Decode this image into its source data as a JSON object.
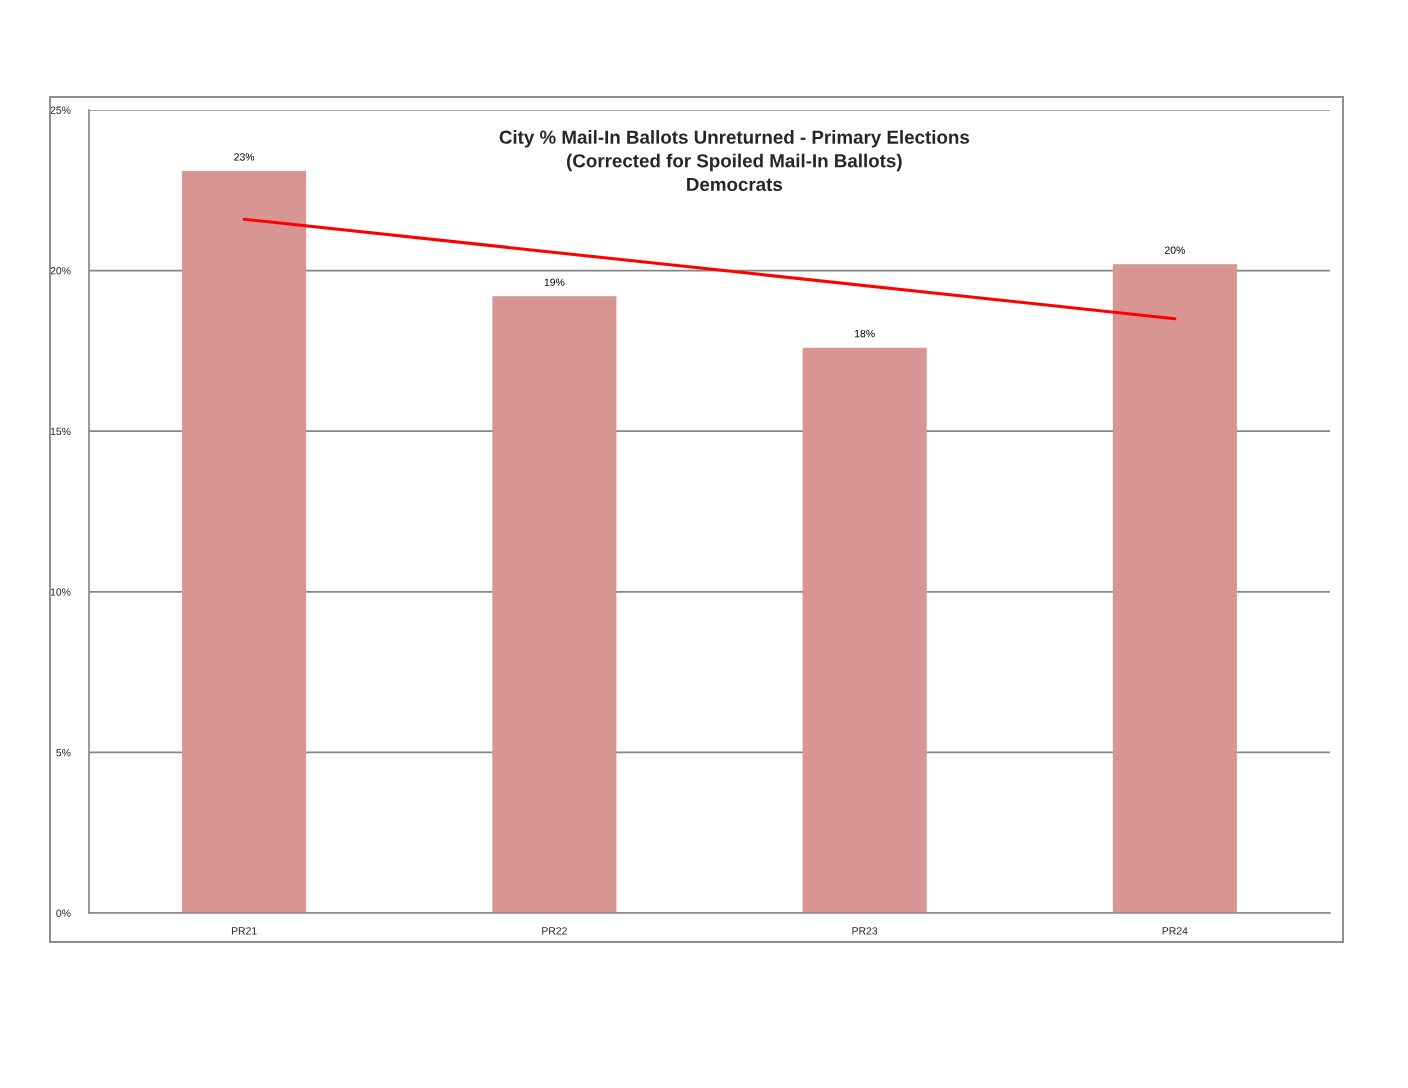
{
  "chart_data": {
    "type": "bar",
    "title": "City % Mail-In Ballots Unreturned - Primary Elections\n(Corrected for Spoiled Mail-In Ballots)\nDemocrats",
    "categories": [
      "PR21",
      "PR22",
      "PR23",
      "PR24"
    ],
    "series": [
      {
        "color": "#d99594",
        "values": [
          23.1,
          19.2,
          17.6,
          20.2
        ],
        "value_labels": [
          "23%",
          "19%",
          "18%",
          "20%"
        ]
      },
      {
        "type": "line",
        "x": [
          "PR21",
          "PR24"
        ],
        "color": "#ff0000",
        "values": [
          21.6,
          18.5
        ]
      }
    ],
    "ylim": [
      0,
      25
    ],
    "yticks": [
      {
        "value": 0,
        "label": "0%"
      },
      {
        "value": 5,
        "label": "5%"
      },
      {
        "value": 10,
        "label": "10%"
      },
      {
        "value": 15,
        "label": "15%"
      },
      {
        "value": 20,
        "label": "20%"
      },
      {
        "value": 25,
        "label": "25%"
      }
    ],
    "grid": "y"
  }
}
